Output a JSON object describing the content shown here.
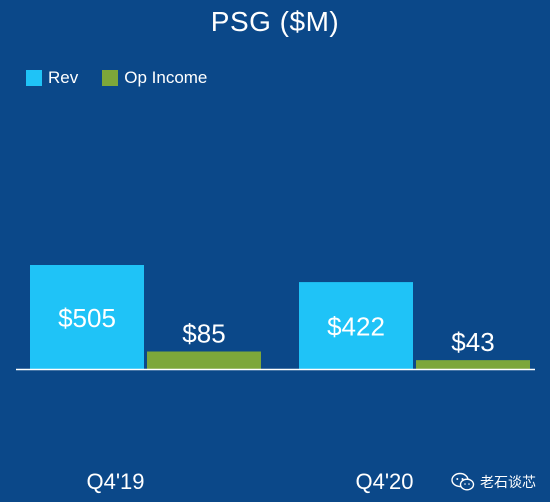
{
  "chart_data": {
    "type": "bar",
    "title": "PSG ($M)",
    "categories": [
      "Q4'19",
      "Q4'20"
    ],
    "series": [
      {
        "name": "Rev",
        "color": "#1fc3f7",
        "values": [
          505,
          422
        ],
        "labels": [
          "$505",
          "$422"
        ]
      },
      {
        "name": "Op Income",
        "color": "#7da73a",
        "values": [
          85,
          43
        ],
        "labels": [
          "$85",
          "$43"
        ]
      }
    ],
    "legend_position": "top-left",
    "grid": false
  },
  "watermark": {
    "text": "老石谈芯",
    "icon": "wechat-icon"
  }
}
